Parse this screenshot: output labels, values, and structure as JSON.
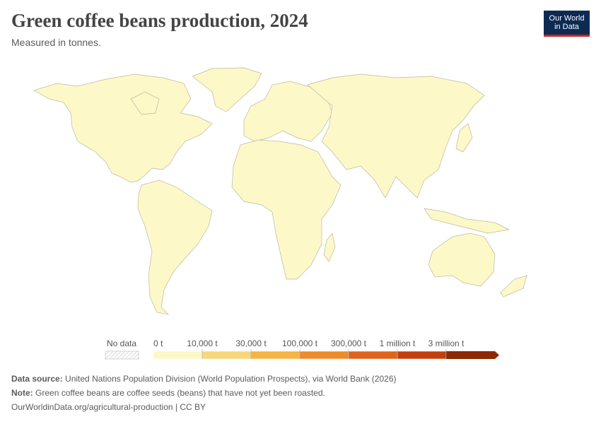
{
  "header": {
    "title": "Green coffee beans production, 2024",
    "subtitle": "Measured in tonnes.",
    "logo": [
      "Our World",
      "in Data"
    ]
  },
  "legend": {
    "no_data": "No data",
    "bins": [
      {
        "label": "0 t",
        "color": "#fdf8c7"
      },
      {
        "label": "10,000 t",
        "color": "#f8d67a"
      },
      {
        "label": "30,000 t",
        "color": "#f5b443"
      },
      {
        "label": "100,000 t",
        "color": "#ee8b2b"
      },
      {
        "label": "300,000 t",
        "color": "#df631a"
      },
      {
        "label": "1 million t",
        "color": "#c3400c"
      },
      {
        "label": "3 million t",
        "color": "#8b2a05"
      }
    ]
  },
  "footer": {
    "source_label": "Data source:",
    "source": "United Nations Population Division (World Population Prospects), via World Bank (2026)",
    "note_label": "Note:",
    "note": "Green coffee beans are coffee seeds (beans) that have not yet been roasted.",
    "url": "OurWorldinData.org/agricultural-production | CC BY"
  }
}
